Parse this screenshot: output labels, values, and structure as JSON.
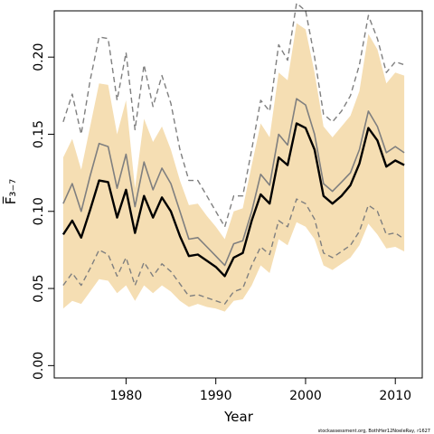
{
  "chart_data": {
    "type": "line",
    "title": "",
    "xlabel": "Year",
    "ylabel": "F̅₃₋₇",
    "xlim": [
      1972,
      2013
    ],
    "ylim": [
      -0.008,
      0.23
    ],
    "x_ticks": [
      1980,
      1990,
      2000,
      2010
    ],
    "y_ticks": [
      0.0,
      0.05,
      0.1,
      0.15,
      0.2
    ],
    "x_tick_labels": [
      "1980",
      "1990",
      "2000",
      "2010"
    ],
    "y_tick_labels": [
      "0.00",
      "0.05",
      "0.10",
      "0.15",
      "0.20"
    ],
    "grid": false,
    "legend": "none",
    "x": [
      1973,
      1974,
      1975,
      1976,
      1977,
      1978,
      1979,
      1980,
      1981,
      1982,
      1983,
      1984,
      1985,
      1986,
      1987,
      1988,
      1989,
      1990,
      1991,
      1992,
      1993,
      1994,
      1995,
      1996,
      1997,
      1998,
      1999,
      2000,
      2001,
      2002,
      2003,
      2004,
      2005,
      2006,
      2007,
      2008,
      2009,
      2010,
      2011
    ],
    "band": {
      "color": "#f5deb3",
      "upper": [
        0.135,
        0.147,
        0.127,
        0.155,
        0.183,
        0.182,
        0.15,
        0.172,
        0.115,
        0.16,
        0.145,
        0.155,
        0.14,
        0.12,
        0.104,
        0.105,
        0.097,
        0.09,
        0.082,
        0.1,
        0.102,
        0.13,
        0.157,
        0.148,
        0.19,
        0.185,
        0.222,
        0.218,
        0.19,
        0.155,
        0.148,
        0.155,
        0.162,
        0.178,
        0.215,
        0.205,
        0.183,
        0.19,
        0.188
      ],
      "lower": [
        0.037,
        0.042,
        0.04,
        0.048,
        0.056,
        0.055,
        0.047,
        0.052,
        0.042,
        0.052,
        0.047,
        0.052,
        0.048,
        0.042,
        0.038,
        0.04,
        0.038,
        0.037,
        0.035,
        0.042,
        0.043,
        0.052,
        0.065,
        0.06,
        0.082,
        0.078,
        0.093,
        0.09,
        0.082,
        0.065,
        0.062,
        0.066,
        0.07,
        0.078,
        0.092,
        0.085,
        0.076,
        0.077,
        0.074
      ]
    },
    "series": [
      {
        "color": "#7f7f7f",
        "dash": "dashed",
        "width": 1.4,
        "values": [
          0.158,
          0.176,
          0.15,
          0.185,
          0.213,
          0.212,
          0.172,
          0.203,
          0.153,
          0.195,
          0.168,
          0.188,
          0.17,
          0.14,
          0.12,
          0.12,
          0.11,
          0.1,
          0.09,
          0.11,
          0.11,
          0.14,
          0.172,
          0.165,
          0.208,
          0.198,
          0.235,
          0.23,
          0.2,
          0.163,
          0.158,
          0.165,
          0.175,
          0.195,
          0.227,
          0.212,
          0.19,
          0.197,
          0.195
        ]
      },
      {
        "color": "#7f7f7f",
        "dash": "dashed",
        "width": 1.4,
        "values": [
          0.052,
          0.06,
          0.052,
          0.063,
          0.075,
          0.072,
          0.058,
          0.07,
          0.052,
          0.067,
          0.058,
          0.066,
          0.061,
          0.053,
          0.045,
          0.046,
          0.044,
          0.042,
          0.04,
          0.048,
          0.05,
          0.065,
          0.077,
          0.072,
          0.094,
          0.09,
          0.108,
          0.105,
          0.095,
          0.073,
          0.07,
          0.074,
          0.078,
          0.087,
          0.104,
          0.1,
          0.085,
          0.086,
          0.082
        ]
      },
      {
        "color": "#7f7f7f",
        "dash": "solid",
        "width": 1.6,
        "values": [
          0.105,
          0.118,
          0.1,
          0.123,
          0.144,
          0.142,
          0.115,
          0.137,
          0.103,
          0.132,
          0.114,
          0.128,
          0.118,
          0.1,
          0.082,
          0.083,
          0.077,
          0.071,
          0.065,
          0.079,
          0.081,
          0.1,
          0.124,
          0.117,
          0.15,
          0.143,
          0.173,
          0.169,
          0.15,
          0.118,
          0.113,
          0.119,
          0.125,
          0.14,
          0.165,
          0.155,
          0.138,
          0.142,
          0.138
        ]
      },
      {
        "color": "#000000",
        "dash": "solid",
        "width": 2.4,
        "values": [
          0.085,
          0.094,
          0.083,
          0.101,
          0.12,
          0.119,
          0.096,
          0.114,
          0.086,
          0.11,
          0.096,
          0.109,
          0.1,
          0.084,
          0.071,
          0.072,
          0.068,
          0.064,
          0.058,
          0.07,
          0.073,
          0.094,
          0.111,
          0.105,
          0.135,
          0.13,
          0.157,
          0.154,
          0.14,
          0.11,
          0.105,
          0.11,
          0.117,
          0.131,
          0.154,
          0.146,
          0.129,
          0.133,
          0.13
        ]
      }
    ],
    "credit": "stockassessment.org, BothHer12NoeleRay, r1627"
  }
}
